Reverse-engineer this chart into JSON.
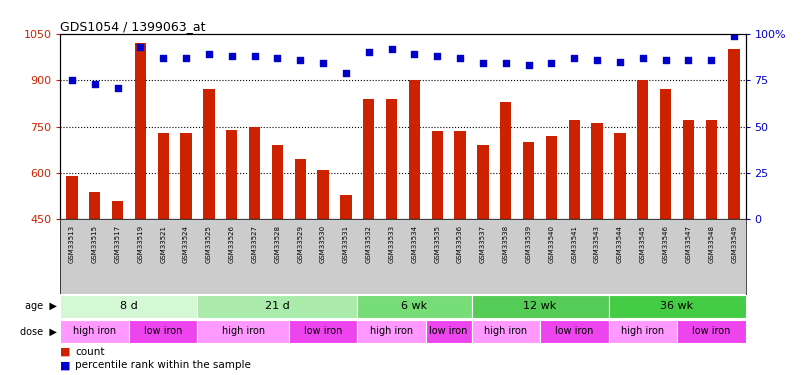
{
  "title": "GDS1054 / 1399063_at",
  "samples": [
    "GSM33513",
    "GSM33515",
    "GSM33517",
    "GSM33519",
    "GSM33521",
    "GSM33524",
    "GSM33525",
    "GSM33526",
    "GSM33527",
    "GSM33528",
    "GSM33529",
    "GSM33530",
    "GSM33531",
    "GSM33532",
    "GSM33533",
    "GSM33534",
    "GSM33535",
    "GSM33536",
    "GSM33537",
    "GSM33538",
    "GSM33539",
    "GSM33540",
    "GSM33541",
    "GSM33543",
    "GSM33544",
    "GSM33545",
    "GSM33546",
    "GSM33547",
    "GSM33548",
    "GSM33549"
  ],
  "counts": [
    590,
    540,
    510,
    1020,
    730,
    730,
    870,
    740,
    750,
    690,
    645,
    610,
    530,
    840,
    840,
    900,
    735,
    735,
    690,
    830,
    700,
    720,
    770,
    760,
    730,
    900,
    870,
    770,
    770,
    1000
  ],
  "percentile_ranks": [
    75,
    73,
    71,
    93,
    87,
    87,
    89,
    88,
    88,
    87,
    86,
    84,
    79,
    90,
    92,
    89,
    88,
    87,
    84,
    84,
    83,
    84,
    87,
    86,
    85,
    87,
    86,
    86,
    86,
    99
  ],
  "age_groups": [
    {
      "label": "8 d",
      "start": 0,
      "end": 5,
      "color": "#d4f7d4"
    },
    {
      "label": "21 d",
      "start": 6,
      "end": 12,
      "color": "#aaeaaa"
    },
    {
      "label": "6 wk",
      "start": 13,
      "end": 17,
      "color": "#77dd77"
    },
    {
      "label": "12 wk",
      "start": 18,
      "end": 23,
      "color": "#55cc55"
    },
    {
      "label": "36 wk",
      "start": 24,
      "end": 29,
      "color": "#44cc44"
    }
  ],
  "dose_groups": [
    {
      "label": "high iron",
      "start": 0,
      "end": 2,
      "color": "#ff99ff"
    },
    {
      "label": "low iron",
      "start": 3,
      "end": 5,
      "color": "#ee44ee"
    },
    {
      "label": "high iron",
      "start": 6,
      "end": 9,
      "color": "#ff99ff"
    },
    {
      "label": "low iron",
      "start": 10,
      "end": 12,
      "color": "#ee44ee"
    },
    {
      "label": "high iron",
      "start": 13,
      "end": 15,
      "color": "#ff99ff"
    },
    {
      "label": "low iron",
      "start": 16,
      "end": 17,
      "color": "#ee44ee"
    },
    {
      "label": "high iron",
      "start": 18,
      "end": 20,
      "color": "#ff99ff"
    },
    {
      "label": "low iron",
      "start": 21,
      "end": 23,
      "color": "#ee44ee"
    },
    {
      "label": "high iron",
      "start": 24,
      "end": 26,
      "color": "#ff99ff"
    },
    {
      "label": "low iron",
      "start": 27,
      "end": 29,
      "color": "#ee44ee"
    }
  ],
  "ylim_left": [
    450,
    1050
  ],
  "ylim_right": [
    0,
    100
  ],
  "yticks_left": [
    450,
    600,
    750,
    900,
    1050
  ],
  "yticks_right": [
    0,
    25,
    50,
    75,
    100
  ],
  "bar_color": "#cc2200",
  "dot_color": "#0000cc",
  "bg_color": "#ffffff",
  "label_count": "count",
  "label_percentile": "percentile rank within the sample",
  "xlabel_bg": "#cccccc"
}
